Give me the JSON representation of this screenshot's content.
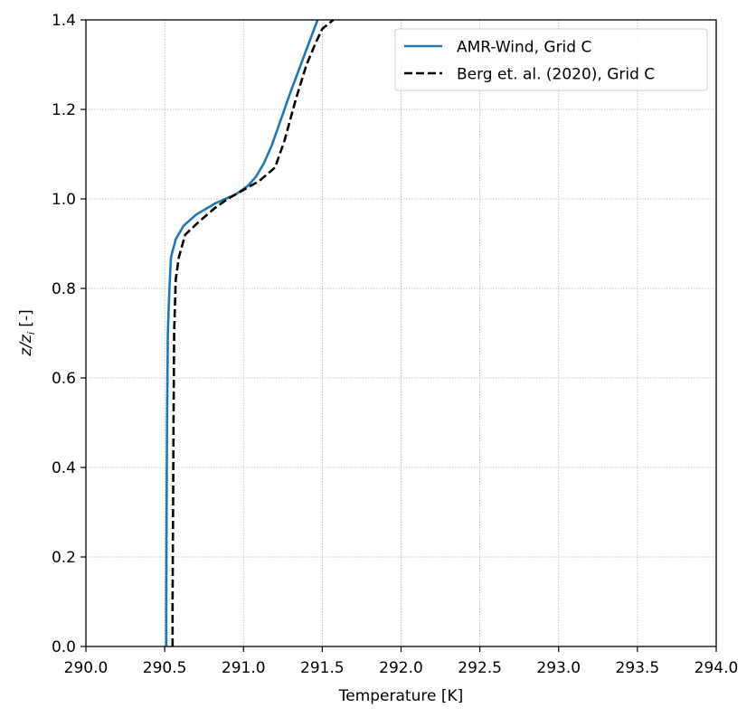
{
  "chart_data": {
    "type": "line",
    "title": "",
    "xlabel": "Temperature [K]",
    "ylabel_main": "z/z",
    "ylabel_sub": "i",
    "ylabel_unit": " [-]",
    "xlim": [
      290.0,
      294.0
    ],
    "ylim": [
      0.0,
      1.4
    ],
    "xticks": [
      290.0,
      290.5,
      291.0,
      291.5,
      292.0,
      292.5,
      293.0,
      293.5,
      294.0
    ],
    "xtick_labels": [
      "290.0",
      "290.5",
      "291.0",
      "291.5",
      "292.0",
      "292.5",
      "293.0",
      "293.5",
      "294.0"
    ],
    "yticks": [
      0.0,
      0.2,
      0.4,
      0.6,
      0.8,
      1.0,
      1.2,
      1.4
    ],
    "ytick_labels": [
      "0.0",
      "0.2",
      "0.4",
      "0.6",
      "0.8",
      "1.0",
      "1.2",
      "1.4"
    ],
    "grid": true,
    "legend_position": "top-right",
    "series": [
      {
        "name": "AMR-Wind, Grid C",
        "color": "#1f77b4",
        "style": "solid",
        "points": [
          [
            290.51,
            0.0
          ],
          [
            290.51,
            0.1
          ],
          [
            290.512,
            0.3
          ],
          [
            290.515,
            0.5
          ],
          [
            290.52,
            0.7
          ],
          [
            290.53,
            0.8
          ],
          [
            290.54,
            0.87
          ],
          [
            290.57,
            0.91
          ],
          [
            290.62,
            0.94
          ],
          [
            290.7,
            0.965
          ],
          [
            290.82,
            0.99
          ],
          [
            290.95,
            1.01
          ],
          [
            291.03,
            1.03
          ],
          [
            291.08,
            1.05
          ],
          [
            291.13,
            1.08
          ],
          [
            291.18,
            1.12
          ],
          [
            291.3,
            1.24
          ],
          [
            291.47,
            1.4
          ]
        ]
      },
      {
        "name": "Berg et. al. (2020), Grid C",
        "color": "#000000",
        "style": "dashed",
        "points": [
          [
            290.55,
            0.0
          ],
          [
            290.55,
            0.1
          ],
          [
            290.553,
            0.3
          ],
          [
            290.556,
            0.5
          ],
          [
            290.56,
            0.7
          ],
          [
            290.57,
            0.82
          ],
          [
            290.59,
            0.87
          ],
          [
            290.63,
            0.92
          ],
          [
            290.72,
            0.95
          ],
          [
            290.82,
            0.98
          ],
          [
            290.9,
            1.0
          ],
          [
            291.0,
            1.02
          ],
          [
            291.1,
            1.04
          ],
          [
            291.2,
            1.07
          ],
          [
            291.26,
            1.13
          ],
          [
            291.33,
            1.22
          ],
          [
            291.4,
            1.3
          ],
          [
            291.46,
            1.35
          ],
          [
            291.5,
            1.38
          ],
          [
            291.57,
            1.4
          ]
        ]
      }
    ]
  }
}
